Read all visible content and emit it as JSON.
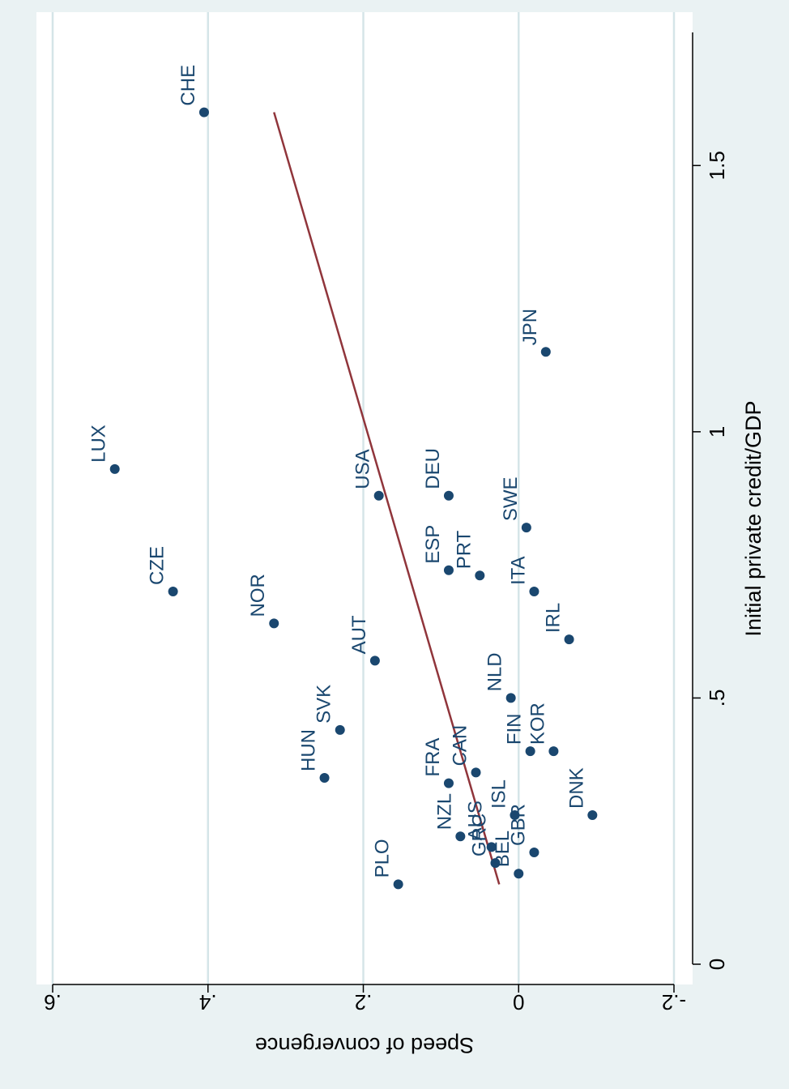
{
  "chart_data": {
    "type": "scatter",
    "orientation": "rotated 90 degrees clockwise (page shown sideways)",
    "xlabel": "Initial private credit/GDP",
    "ylabel": "Speed of convergence",
    "xlim": [
      0,
      1.75
    ],
    "ylim": [
      -0.2,
      0.6
    ],
    "x_ticks": [
      0,
      0.5,
      1,
      1.5
    ],
    "x_tick_labels": [
      "0",
      ".5",
      "1",
      "1.5"
    ],
    "y_ticks": [
      -0.2,
      0,
      0.2,
      0.4,
      0.6
    ],
    "y_tick_labels": [
      "-.2",
      "0",
      ".2",
      ".4",
      ".6"
    ],
    "grid": "horizontal (y) gridlines",
    "colors": {
      "background": "#eaf2f3",
      "plot_area": "#ffffff",
      "gridline": "#d5e5e8",
      "marker": "#1a476f",
      "fit_line": "#90353b"
    },
    "points": [
      {
        "label": "CHE",
        "x": 1.6,
        "y": 0.405
      },
      {
        "label": "LUX",
        "x": 0.93,
        "y": 0.52
      },
      {
        "label": "CZE",
        "x": 0.7,
        "y": 0.445
      },
      {
        "label": "NOR",
        "x": 0.64,
        "y": 0.315
      },
      {
        "label": "JPN",
        "x": 1.15,
        "y": -0.035
      },
      {
        "label": "USA",
        "x": 0.88,
        "y": 0.18
      },
      {
        "label": "DEU",
        "x": 0.88,
        "y": 0.09
      },
      {
        "label": "SWE",
        "x": 0.82,
        "y": -0.01
      },
      {
        "label": "ESP",
        "x": 0.74,
        "y": 0.09
      },
      {
        "label": "PRT",
        "x": 0.73,
        "y": 0.05
      },
      {
        "label": "ITA",
        "x": 0.7,
        "y": -0.02
      },
      {
        "label": "AUT",
        "x": 0.57,
        "y": 0.185
      },
      {
        "label": "IRL",
        "x": 0.61,
        "y": -0.065
      },
      {
        "label": "NLD",
        "x": 0.5,
        "y": 0.01
      },
      {
        "label": "SVK",
        "x": 0.44,
        "y": 0.23
      },
      {
        "label": "FIN",
        "x": 0.4,
        "y": -0.015
      },
      {
        "label": "KOR",
        "x": 0.4,
        "y": -0.045
      },
      {
        "label": "HUN",
        "x": 0.35,
        "y": 0.25
      },
      {
        "label": "FRA",
        "x": 0.34,
        "y": 0.09
      },
      {
        "label": "CAN",
        "x": 0.36,
        "y": 0.055
      },
      {
        "label": "ISL",
        "x": 0.28,
        "y": 0.005
      },
      {
        "label": "DNK",
        "x": 0.28,
        "y": -0.095
      },
      {
        "label": "NZL",
        "x": 0.24,
        "y": 0.075
      },
      {
        "label": "AUS",
        "x": 0.22,
        "y": 0.035
      },
      {
        "label": "GRC",
        "x": 0.19,
        "y": 0.03
      },
      {
        "label": "BEL",
        "x": 0.17,
        "y": 0.0
      },
      {
        "label": "GBR",
        "x": 0.21,
        "y": -0.02
      },
      {
        "label": "PLO",
        "x": 0.15,
        "y": 0.155
      }
    ],
    "fit_line": {
      "x": [
        0.15,
        1.6
      ],
      "y": [
        0.025,
        0.315
      ]
    }
  }
}
